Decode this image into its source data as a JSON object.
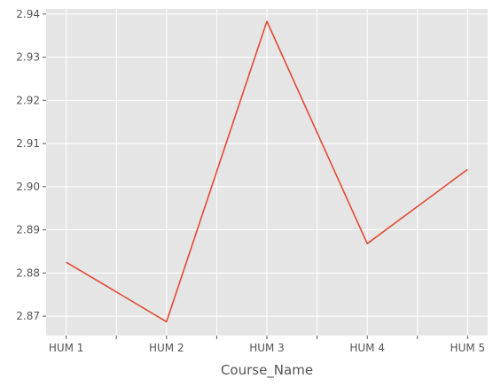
{
  "chart_data": {
    "type": "line",
    "xlabel": "Course_Name",
    "ylabel": "",
    "categories": [
      "HUM 1",
      "HUM 2",
      "HUM 3",
      "HUM 4",
      "HUM 5"
    ],
    "series": [
      {
        "values": [
          2.8825,
          2.8687,
          2.9383,
          2.8868,
          2.904
        ]
      }
    ],
    "ylim": [
      2.8655,
      2.9412
    ],
    "xlim": [
      -0.2,
      4.2
    ],
    "yticks": [
      {
        "value": 2.87,
        "label": "2.87"
      },
      {
        "value": 2.88,
        "label": "2.88"
      },
      {
        "value": 2.89,
        "label": "2.89"
      },
      {
        "value": 2.9,
        "label": "2.90"
      },
      {
        "value": 2.91,
        "label": "2.91"
      },
      {
        "value": 2.92,
        "label": "2.92"
      },
      {
        "value": 2.93,
        "label": "2.93"
      },
      {
        "value": 2.94,
        "label": "2.94"
      }
    ],
    "xticks": [
      0,
      0.5,
      1,
      1.5,
      2,
      2.5,
      3,
      3.5,
      4
    ],
    "grid": true,
    "colors": {
      "background": "#e5e5e5",
      "grid": "#ffffff",
      "line": "#e24a33",
      "text": "#555555"
    }
  }
}
